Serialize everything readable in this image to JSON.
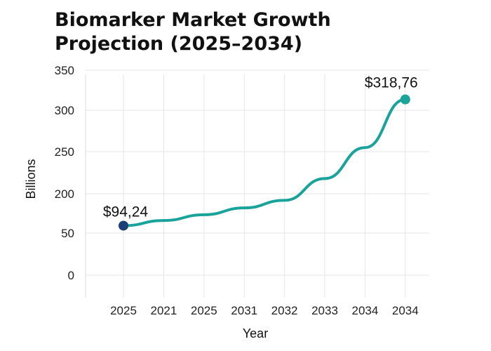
{
  "chart_data": {
    "type": "line",
    "title_line1": "Biomarker Market Growth",
    "title_line2": "Projection (2025–2034)",
    "xlabel": "Year",
    "ylabel": "Billions",
    "x_tick_labels": [
      "2025",
      "2021",
      "2025",
      "2031",
      "2032",
      "2033",
      "2034",
      "2034"
    ],
    "y_ticks": [
      0,
      50,
      200,
      250,
      300,
      350
    ],
    "ylim": [
      0,
      350
    ],
    "grid": true,
    "series": [
      {
        "x_index": [
          0,
          1,
          2,
          3,
          4,
          5,
          6,
          7
        ],
        "values": [
          94.24,
          114,
          136,
          162,
          191,
          223,
          260,
          318.76
        ],
        "color": "#1aa39a"
      }
    ],
    "annotations": [
      {
        "point_index": 0,
        "text": "$94,24",
        "marker_color": "#1c3f7a"
      },
      {
        "point_index": 7,
        "text": "$318,76",
        "marker_color": "#1aa39a"
      }
    ]
  }
}
